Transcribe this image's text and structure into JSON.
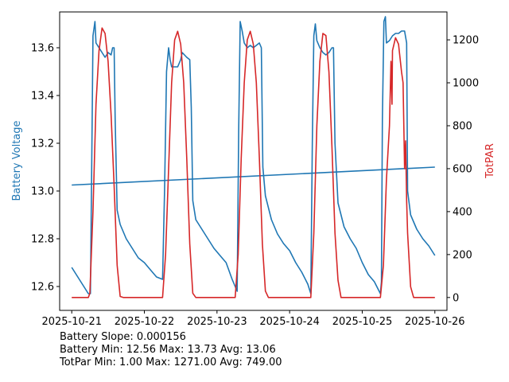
{
  "chart_data": {
    "type": "line",
    "x_ticks": [
      "2025-10-21",
      "2025-10-22",
      "2025-10-23",
      "2025-10-24",
      "2025-10-25",
      "2025-10-26"
    ],
    "xlim": [
      "2025-10-20 20:00",
      "2025-10-26 04:00"
    ],
    "left_axis": {
      "label": "Battery Voltage",
      "color": "#1f77b4",
      "ylim": [
        12.5,
        13.75
      ],
      "ticks": [
        "12.6",
        "12.8",
        "13.0",
        "13.2",
        "13.4",
        "13.6"
      ]
    },
    "right_axis": {
      "label": "TotPAR",
      "color": "#d62728",
      "ylim": [
        -60,
        1330
      ],
      "ticks": [
        "0",
        "200",
        "400",
        "600",
        "800",
        "1000",
        "1200"
      ]
    },
    "series": [
      {
        "axis": "left",
        "color": "#1f77b4",
        "points": [
          [
            "2025-10-21 00:00",
            12.68
          ],
          [
            "2025-10-21 02:00",
            12.64
          ],
          [
            "2025-10-21 04:00",
            12.6
          ],
          [
            "2025-10-21 05:30",
            12.57
          ],
          [
            "2025-10-21 06:10",
            12.57
          ],
          [
            "2025-10-21 06:40",
            13.2
          ],
          [
            "2025-10-21 07:00",
            13.65
          ],
          [
            "2025-10-21 07:40",
            13.71
          ],
          [
            "2025-10-21 08:00",
            13.62
          ],
          [
            "2025-10-21 09:00",
            13.6
          ],
          [
            "2025-10-21 10:00",
            13.58
          ],
          [
            "2025-10-21 11:00",
            13.56
          ],
          [
            "2025-10-21 12:00",
            13.58
          ],
          [
            "2025-10-21 13:00",
            13.57
          ],
          [
            "2025-10-21 13:30",
            13.6
          ],
          [
            "2025-10-21 14:00",
            13.6
          ],
          [
            "2025-10-21 14:20",
            13.3
          ],
          [
            "2025-10-21 15:00",
            12.92
          ],
          [
            "2025-10-21 16:00",
            12.86
          ],
          [
            "2025-10-21 18:00",
            12.8
          ],
          [
            "2025-10-21 20:00",
            12.76
          ],
          [
            "2025-10-21 22:00",
            12.72
          ],
          [
            "2025-10-22 00:00",
            12.7
          ],
          [
            "2025-10-22 02:00",
            12.67
          ],
          [
            "2025-10-22 04:00",
            12.64
          ],
          [
            "2025-10-22 06:00",
            12.63
          ],
          [
            "2025-10-22 06:40",
            13.0
          ],
          [
            "2025-10-22 07:20",
            13.5
          ],
          [
            "2025-10-22 08:00",
            13.6
          ],
          [
            "2025-10-22 08:30",
            13.55
          ],
          [
            "2025-10-22 09:00",
            13.52
          ],
          [
            "2025-10-22 10:00",
            13.52
          ],
          [
            "2025-10-22 11:00",
            13.52
          ],
          [
            "2025-10-22 12:00",
            13.55
          ],
          [
            "2025-10-22 12:30",
            13.58
          ],
          [
            "2025-10-22 14:00",
            13.56
          ],
          [
            "2025-10-22 15:00",
            13.55
          ],
          [
            "2025-10-22 15:30",
            13.35
          ],
          [
            "2025-10-22 16:00",
            12.96
          ],
          [
            "2025-10-22 17:00",
            12.88
          ],
          [
            "2025-10-22 19:00",
            12.84
          ],
          [
            "2025-10-22 21:00",
            12.8
          ],
          [
            "2025-10-22 23:00",
            12.76
          ],
          [
            "2025-10-23 01:00",
            12.73
          ],
          [
            "2025-10-23 03:00",
            12.7
          ],
          [
            "2025-10-23 05:00",
            12.63
          ],
          [
            "2025-10-23 06:40",
            12.58
          ],
          [
            "2025-10-23 07:10",
            13.25
          ],
          [
            "2025-10-23 07:40",
            13.71
          ],
          [
            "2025-10-23 08:20",
            13.67
          ],
          [
            "2025-10-23 09:00",
            13.62
          ],
          [
            "2025-10-23 10:00",
            13.6
          ],
          [
            "2025-10-23 11:00",
            13.61
          ],
          [
            "2025-10-23 12:00",
            13.6
          ],
          [
            "2025-10-23 13:00",
            13.61
          ],
          [
            "2025-10-23 14:00",
            13.62
          ],
          [
            "2025-10-23 14:40",
            13.6
          ],
          [
            "2025-10-23 15:10",
            13.1
          ],
          [
            "2025-10-23 16:00",
            12.98
          ],
          [
            "2025-10-23 18:00",
            12.88
          ],
          [
            "2025-10-23 20:00",
            12.82
          ],
          [
            "2025-10-23 22:00",
            12.78
          ],
          [
            "2025-10-24 00:00",
            12.75
          ],
          [
            "2025-10-24 02:00",
            12.7
          ],
          [
            "2025-10-24 04:00",
            12.66
          ],
          [
            "2025-10-24 06:00",
            12.61
          ],
          [
            "2025-10-24 07:00",
            12.57
          ],
          [
            "2025-10-24 07:30",
            13.2
          ],
          [
            "2025-10-24 08:00",
            13.65
          ],
          [
            "2025-10-24 08:30",
            13.7
          ],
          [
            "2025-10-24 09:00",
            13.63
          ],
          [
            "2025-10-24 10:00",
            13.6
          ],
          [
            "2025-10-24 11:00",
            13.58
          ],
          [
            "2025-10-24 12:00",
            13.57
          ],
          [
            "2025-10-24 13:00",
            13.58
          ],
          [
            "2025-10-24 14:00",
            13.6
          ],
          [
            "2025-10-24 14:30",
            13.6
          ],
          [
            "2025-10-24 15:00",
            13.2
          ],
          [
            "2025-10-24 16:00",
            12.95
          ],
          [
            "2025-10-24 18:00",
            12.85
          ],
          [
            "2025-10-24 20:00",
            12.8
          ],
          [
            "2025-10-24 22:00",
            12.76
          ],
          [
            "2025-10-25 00:00",
            12.7
          ],
          [
            "2025-10-25 02:00",
            12.65
          ],
          [
            "2025-10-25 04:00",
            12.62
          ],
          [
            "2025-10-25 06:00",
            12.57
          ],
          [
            "2025-10-25 06:20",
            12.62
          ],
          [
            "2025-10-25 06:40",
            13.3
          ],
          [
            "2025-10-25 07:10",
            13.71
          ],
          [
            "2025-10-25 07:40",
            13.73
          ],
          [
            "2025-10-25 08:00",
            13.62
          ],
          [
            "2025-10-25 09:00",
            13.63
          ],
          [
            "2025-10-25 10:00",
            13.65
          ],
          [
            "2025-10-25 11:00",
            13.66
          ],
          [
            "2025-10-25 12:00",
            13.66
          ],
          [
            "2025-10-25 13:00",
            13.67
          ],
          [
            "2025-10-25 14:00",
            13.67
          ],
          [
            "2025-10-25 14:40",
            13.62
          ],
          [
            "2025-10-25 15:00",
            13.0
          ],
          [
            "2025-10-25 16:00",
            12.9
          ],
          [
            "2025-10-25 18:00",
            12.84
          ],
          [
            "2025-10-25 20:00",
            12.8
          ],
          [
            "2025-10-25 22:00",
            12.77
          ],
          [
            "2025-10-26 00:00",
            12.73
          ]
        ]
      },
      {
        "axis": "left",
        "color": "#1f77b4",
        "points": [
          [
            "2025-10-21 00:00",
            13.025
          ],
          [
            "2025-10-26 00:00",
            13.1
          ]
        ]
      },
      {
        "axis": "right",
        "color": "#d62728",
        "points": [
          [
            "2025-10-21 00:00",
            0
          ],
          [
            "2025-10-21 05:30",
            0
          ],
          [
            "2025-10-21 06:00",
            20
          ],
          [
            "2025-10-21 07:00",
            400
          ],
          [
            "2025-10-21 08:00",
            900
          ],
          [
            "2025-10-21 09:00",
            1150
          ],
          [
            "2025-10-21 10:00",
            1255
          ],
          [
            "2025-10-21 11:00",
            1230
          ],
          [
            "2025-10-21 12:00",
            1100
          ],
          [
            "2025-10-21 13:00",
            850
          ],
          [
            "2025-10-21 14:00",
            520
          ],
          [
            "2025-10-21 15:00",
            150
          ],
          [
            "2025-10-21 16:00",
            5
          ],
          [
            "2025-10-21 17:00",
            0
          ],
          [
            "2025-10-22 06:00",
            0
          ],
          [
            "2025-10-22 07:00",
            200
          ],
          [
            "2025-10-22 08:00",
            600
          ],
          [
            "2025-10-22 09:00",
            1000
          ],
          [
            "2025-10-22 10:00",
            1200
          ],
          [
            "2025-10-22 11:00",
            1240
          ],
          [
            "2025-10-22 12:00",
            1180
          ],
          [
            "2025-10-22 13:00",
            1000
          ],
          [
            "2025-10-22 14:00",
            650
          ],
          [
            "2025-10-22 15:00",
            250
          ],
          [
            "2025-10-22 16:00",
            20
          ],
          [
            "2025-10-22 17:00",
            0
          ],
          [
            "2025-10-23 06:00",
            0
          ],
          [
            "2025-10-23 07:00",
            200
          ],
          [
            "2025-10-23 08:00",
            650
          ],
          [
            "2025-10-23 09:00",
            1000
          ],
          [
            "2025-10-23 10:00",
            1200
          ],
          [
            "2025-10-23 11:00",
            1240
          ],
          [
            "2025-10-23 12:00",
            1180
          ],
          [
            "2025-10-23 13:00",
            1000
          ],
          [
            "2025-10-23 14:00",
            650
          ],
          [
            "2025-10-23 15:00",
            250
          ],
          [
            "2025-10-23 16:00",
            30
          ],
          [
            "2025-10-23 17:00",
            0
          ],
          [
            "2025-10-24 07:00",
            0
          ],
          [
            "2025-10-24 08:00",
            300
          ],
          [
            "2025-10-24 09:00",
            800
          ],
          [
            "2025-10-24 10:00",
            1100
          ],
          [
            "2025-10-24 11:00",
            1230
          ],
          [
            "2025-10-24 12:00",
            1220
          ],
          [
            "2025-10-24 13:00",
            1050
          ],
          [
            "2025-10-24 14:00",
            700
          ],
          [
            "2025-10-24 15:00",
            300
          ],
          [
            "2025-10-24 16:00",
            80
          ],
          [
            "2025-10-24 17:00",
            0
          ],
          [
            "2025-10-25 06:00",
            0
          ],
          [
            "2025-10-25 07:00",
            150
          ],
          [
            "2025-10-25 08:00",
            550
          ],
          [
            "2025-10-25 09:00",
            800
          ],
          [
            "2025-10-25 09:30",
            1100
          ],
          [
            "2025-10-25 09:50",
            900
          ],
          [
            "2025-10-25 10:00",
            1150
          ],
          [
            "2025-10-25 11:00",
            1210
          ],
          [
            "2025-10-25 12:00",
            1180
          ],
          [
            "2025-10-25 13:00",
            1050
          ],
          [
            "2025-10-25 13:30",
            1000
          ],
          [
            "2025-10-25 14:00",
            600
          ],
          [
            "2025-10-25 14:20",
            730
          ],
          [
            "2025-10-25 14:40",
            450
          ],
          [
            "2025-10-25 15:00",
            300
          ],
          [
            "2025-10-25 16:00",
            50
          ],
          [
            "2025-10-25 17:00",
            0
          ],
          [
            "2025-10-26 00:00",
            0
          ]
        ]
      }
    ]
  },
  "stats": {
    "slope": "Battery Slope: 0.000156",
    "battery": "Battery Min: 12.56 Max: 13.73 Avg: 13.06",
    "totpar": "TotPar Min: 1.00 Max: 1271.00 Avg: 749.00"
  }
}
